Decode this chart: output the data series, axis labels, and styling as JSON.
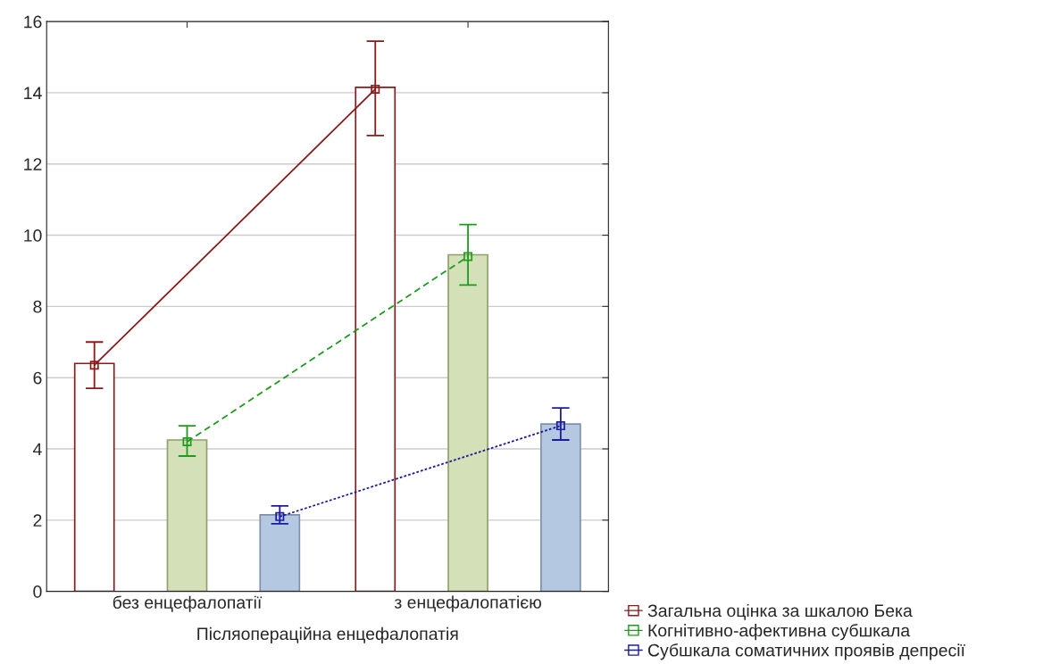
{
  "chart_data": {
    "type": "bar",
    "xlabel": "Післяопераційна енцефалопатія",
    "categories": [
      "без енцефалопатії",
      "з енцефалопатією"
    ],
    "series": [
      {
        "color": "#8b1a1a",
        "colors": [
          "#ffffff",
          "#ffffff"
        ],
        "values": [
          6.4,
          14.15
        ]
      },
      {
        "color": "#8fa06a",
        "colors": [
          "#d4e0b8",
          "#d4e0b8"
        ],
        "values": [
          4.25,
          9.45
        ]
      },
      {
        "color": "#7f8fa8",
        "colors": [
          "#b5c8e2",
          "#b5c8e2"
        ],
        "values": [
          2.15,
          4.7
        ]
      },
      {
        "name": "Загальна оцінка за шкалою Бека",
        "type": "line",
        "color": "#8b1a1a",
        "values": [
          6.35,
          14.1
        ],
        "errors": [
          [
            5.7,
            7.0
          ],
          [
            12.8,
            15.45
          ]
        ],
        "line_style": "solid",
        "marker": "square"
      },
      {
        "name": "Когнітивно-афективна субшкала",
        "type": "line",
        "color": "#1f9a1f",
        "values": [
          4.2,
          9.4
        ],
        "errors": [
          [
            3.8,
            4.65
          ],
          [
            8.6,
            10.3
          ]
        ],
        "line_style": "dashed",
        "marker": "square"
      },
      {
        "name": "Субшкала соматичних проявів депресії",
        "type": "line",
        "color": "#1c1c9c",
        "values": [
          2.1,
          4.65
        ],
        "errors": [
          [
            1.9,
            2.4
          ],
          [
            4.25,
            5.15
          ]
        ],
        "line_style": "dotted",
        "marker": "square"
      }
    ],
    "ylim": [
      0,
      16
    ],
    "yticks": [
      0,
      2,
      4,
      6,
      8,
      10,
      12,
      14,
      16
    ],
    "grid": "y",
    "legend": "bottom right"
  }
}
